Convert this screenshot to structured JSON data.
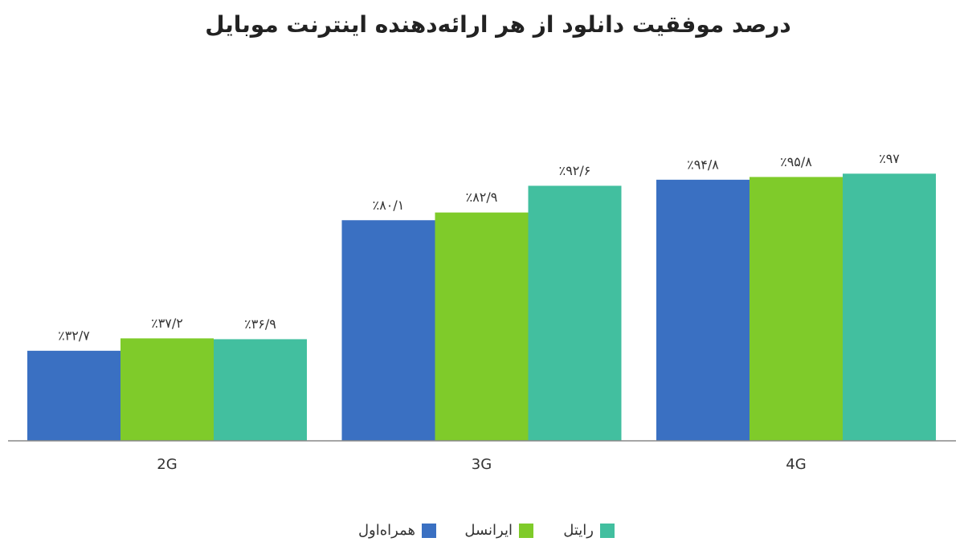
{
  "chart_data": {
    "type": "bar",
    "title": "درصد موفقیت دانلود از هر ارائه‌دهنده اینترنت موبایل",
    "categories": [
      "2G",
      "3G",
      "4G"
    ],
    "series": [
      {
        "name": "همراه‌اول",
        "color": "#3a70c2",
        "values": [
          32.7,
          80.1,
          94.8
        ],
        "value_labels": [
          "٪۳۲/۷",
          "٪۸۰/۱",
          "٪۹۴/۸"
        ]
      },
      {
        "name": "ایرانسل",
        "color": "#7fcb2a",
        "values": [
          37.2,
          82.9,
          95.8
        ],
        "value_labels": [
          "٪۳۷/۲",
          "٪۸۲/۹",
          "٪۹۵/۸"
        ]
      },
      {
        "name": "رایتل",
        "color": "#42bf9f",
        "values": [
          36.9,
          92.6,
          97
        ],
        "value_labels": [
          "٪۳۶/۹",
          "٪۹۲/۶",
          "٪۹۷"
        ]
      }
    ],
    "ylim": [
      0,
      100
    ],
    "legend": "bottom"
  }
}
